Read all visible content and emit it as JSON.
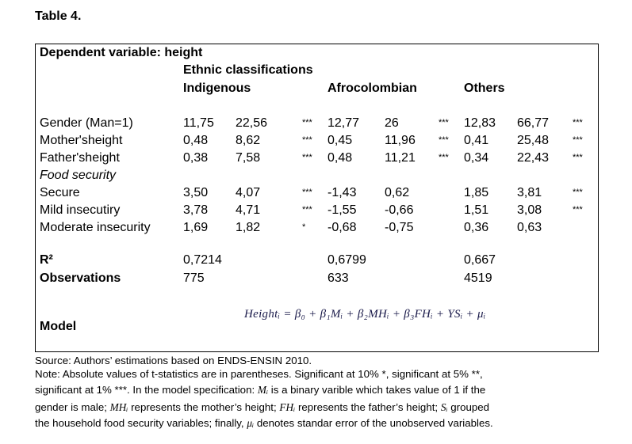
{
  "title": "Table 4.",
  "header": {
    "dependent": "Dependent variable: height",
    "ethnic": "Ethnic classifications",
    "groups": [
      "Indigenous",
      "Afrocolombian",
      "Others"
    ]
  },
  "rows": [
    {
      "label": "Gender (Man=1)",
      "cells": [
        "11,75",
        "22,56",
        "***",
        "12,77",
        "26",
        "***",
        "12,83",
        "66,77",
        "***"
      ]
    },
    {
      "label": "Mother'sheight",
      "cells": [
        "0,48",
        "8,62",
        "***",
        "0,45",
        "11,96",
        "***",
        "0,41",
        "25,48",
        "***"
      ]
    },
    {
      "label": "Father'sheight",
      "cells": [
        "0,38",
        "7,58",
        "***",
        "0,48",
        "11,21",
        "***",
        "0,34",
        "22,43",
        "***"
      ]
    },
    {
      "label": "Food security",
      "cells": [
        "",
        "",
        "",
        "",
        "",
        "",
        "",
        "",
        ""
      ]
    },
    {
      "label": "Secure",
      "cells": [
        "3,50",
        "4,07",
        "***",
        "-1,43",
        "0,62",
        "",
        "1,85",
        "3,81",
        "***"
      ]
    },
    {
      "label": "Mild insecutiry",
      "cells": [
        "3,78",
        "4,71",
        "***",
        "-1,55",
        "-0,66",
        "",
        "1,51",
        "3,08",
        "***"
      ]
    },
    {
      "label": "Moderate insecurity",
      "cells": [
        "1,69",
        "1,82",
        "*",
        "-0,68",
        "-0,75",
        "",
        "0,36",
        "0,63",
        ""
      ]
    }
  ],
  "summary": {
    "r2_label": "R²",
    "r2": [
      "0,7214",
      "0,6799",
      "0,667"
    ],
    "obs_label": "Observations",
    "obs": [
      "775",
      "633",
      "4519"
    ]
  },
  "model": {
    "label": "Model",
    "formula": "Heightᵢ = β₀ + β₁Mᵢ + β₂MHᵢ + β₃FHᵢ + ΥSᵢ + μᵢ"
  },
  "footnote": {
    "source": "Source: Authors’ estimations based on ENDS-ENSIN 2010.",
    "note1": "Note: Absolute values of t-statistics are in parentheses. Significant at 10% *, significant at 5% **,",
    "note2a": "significant at 1% ***. In the model specification:",
    "sym_m": "Mᵢ",
    "note2b": "is a binary varible which takes value of 1 if the",
    "note3a": "gender is male;",
    "sym_mh": "MHᵢ",
    "note3b": "represents the mother’s height;",
    "sym_fh": "FHᵢ",
    "note3c": "represents the father’s height;",
    "sym_s": "Sᵢ",
    "note3d": "grouped",
    "note4a": "the household food security variables; finally,",
    "sym_mu": "μᵢ",
    "note4b": "denotes standar error of the unobserved variables."
  }
}
